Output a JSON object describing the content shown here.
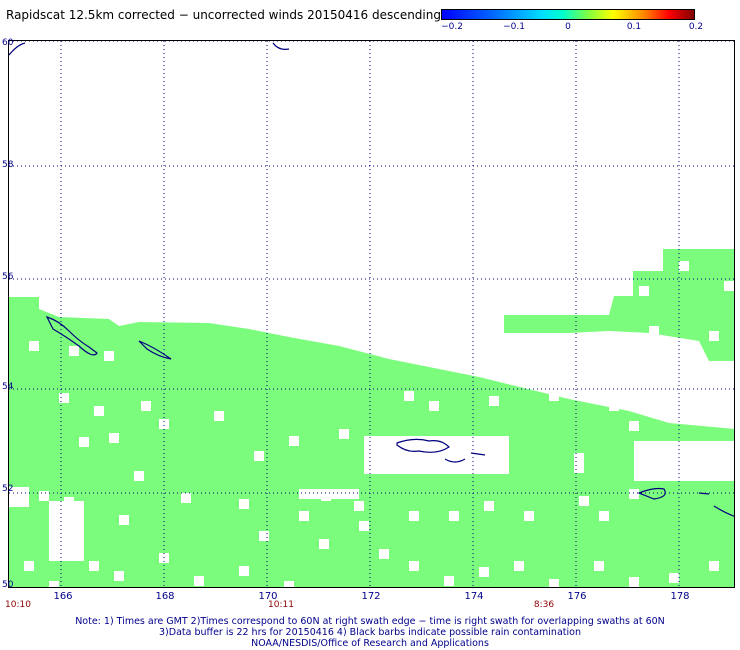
{
  "title": "Rapidscat 12.5km corrected − uncorrected winds 20150416 descending",
  "colorbar": {
    "ticks": [
      "−0.2",
      "−0.1",
      "0",
      "0.1",
      "0.2"
    ],
    "colors": [
      "#0000ff",
      "#00e0ff",
      "#80ff40",
      "#ffff00",
      "#ff0000",
      "#800000"
    ]
  },
  "map": {
    "lat_labels": [
      "60",
      "58",
      "56",
      "54",
      "52",
      "50"
    ],
    "lon_labels": [
      "166",
      "168",
      "170",
      "172",
      "174",
      "176",
      "178"
    ],
    "time_labels": [
      "10:10",
      "10:11",
      "8:36"
    ],
    "swath_color": "#7cfc7c",
    "coast_color": "#000080"
  },
  "notes": {
    "line1": "Note: 1) Times are GMT 2)Times correspond to 60N at right swath edge − time is right swath for overlapping swaths at 60N",
    "line2": "3)Data buffer is 22 hrs for 20150416 4) Black barbs indicate possible rain contamination",
    "line3": "NOAA/NESDIS/Office of Research and Applications"
  }
}
